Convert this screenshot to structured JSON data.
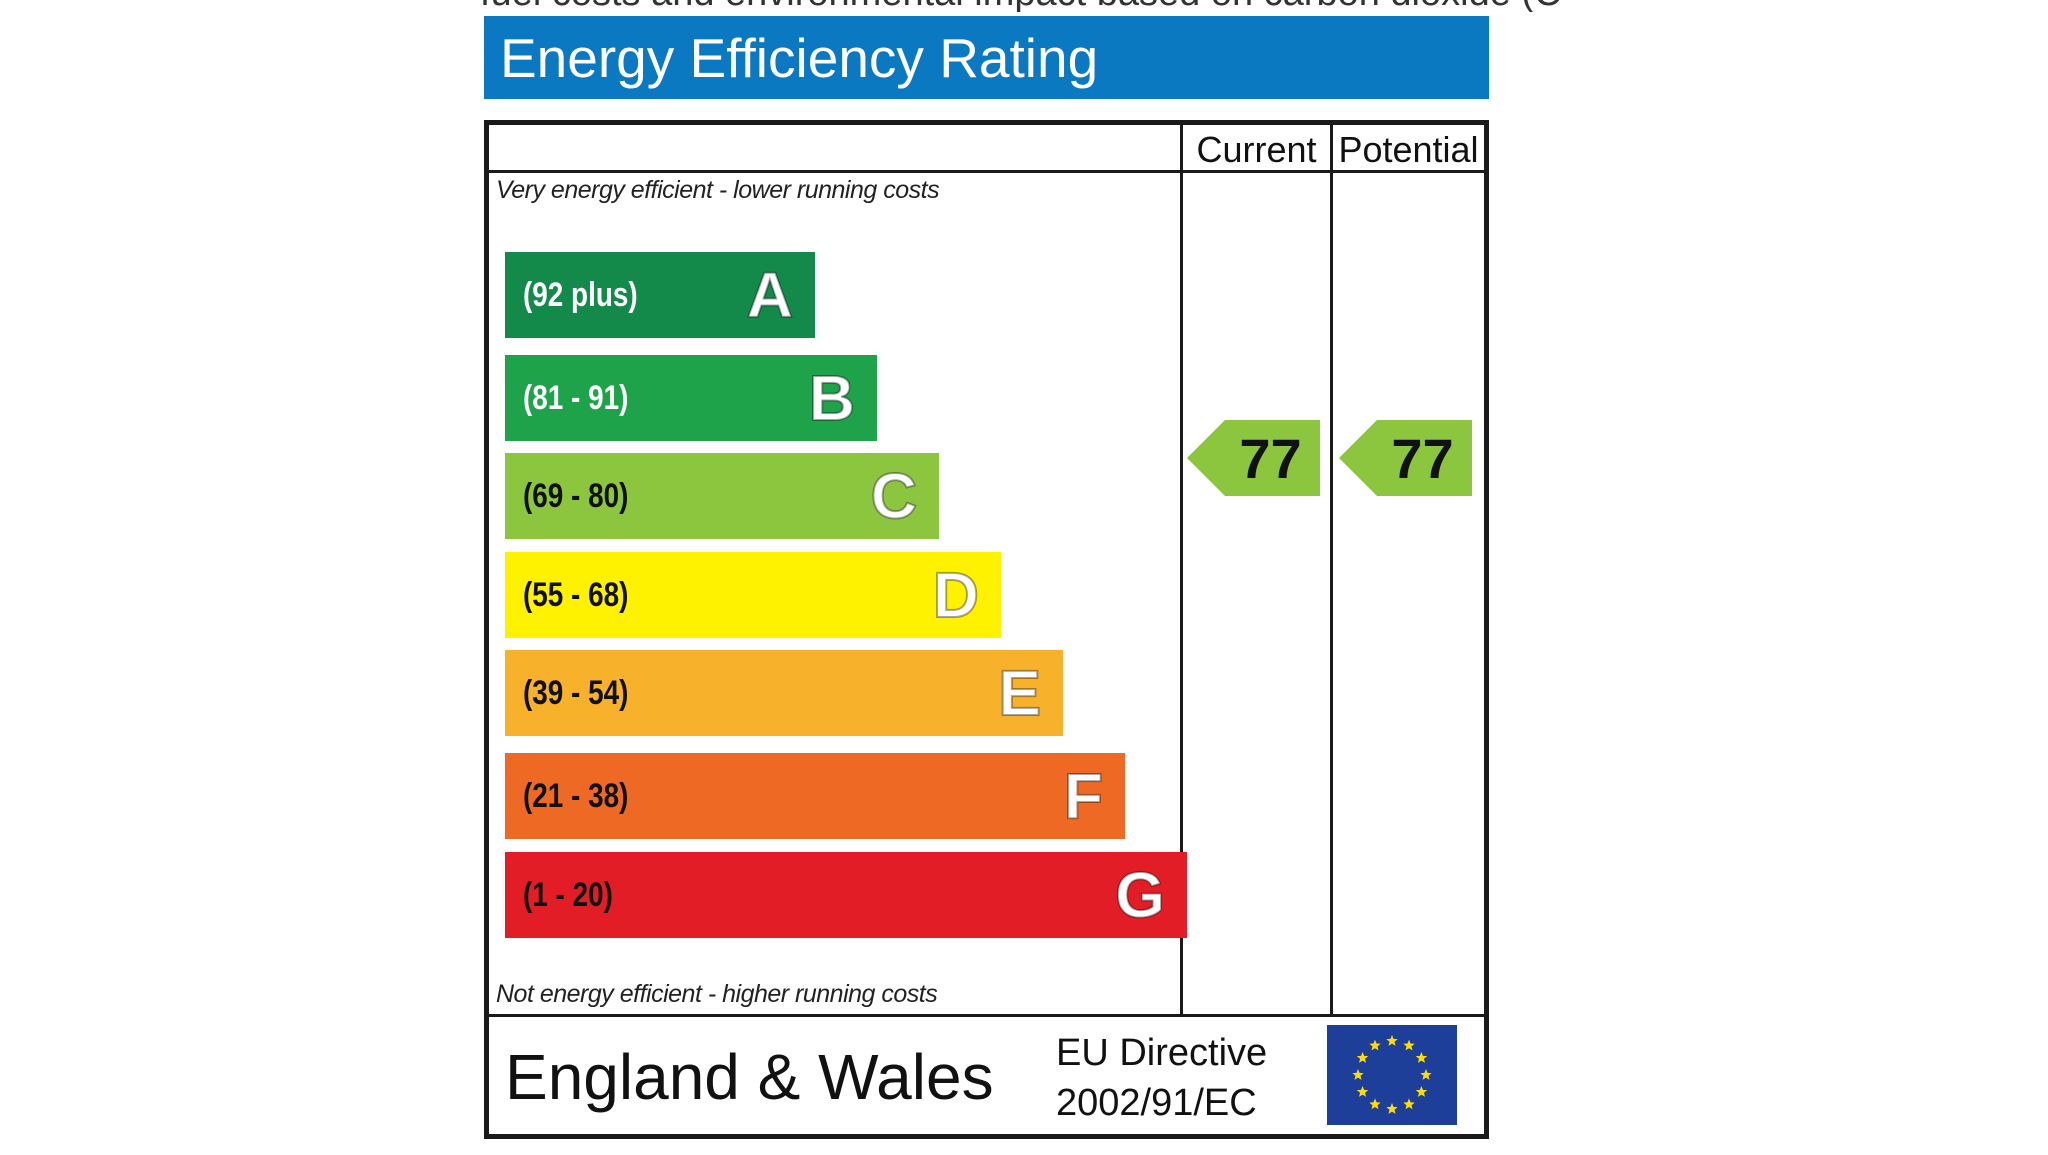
{
  "page": {
    "cut_off_text": "fuel costs and environmental impact based on carbon dioxide (C"
  },
  "chart_data": {
    "type": "bar",
    "title": "Energy Efficiency Rating",
    "columns": [
      "Current",
      "Potential"
    ],
    "top_note": "Very energy efficient - lower running costs",
    "bottom_note": "Not energy efficient - higher running costs",
    "bands": [
      {
        "letter": "A",
        "range": "(92 plus)",
        "color": "#138a4a",
        "text_color": "#ffffff"
      },
      {
        "letter": "B",
        "range": "(81 - 91)",
        "color": "#1ea34b",
        "text_color": "#ffffff"
      },
      {
        "letter": "C",
        "range": "(69 - 80)",
        "color": "#8cc63f",
        "text_color": "#111111"
      },
      {
        "letter": "D",
        "range": "(55 - 68)",
        "color": "#fff200",
        "text_color": "#111111"
      },
      {
        "letter": "E",
        "range": "(39 - 54)",
        "color": "#f7b12b",
        "text_color": "#111111"
      },
      {
        "letter": "F",
        "range": "(21 - 38)",
        "color": "#ee6a24",
        "text_color": "#111111"
      },
      {
        "letter": "G",
        "range": "(1 - 20)",
        "color": "#e31d25",
        "text_color": "#111111"
      }
    ],
    "current": {
      "value": "77",
      "band": "C",
      "color": "#8cc63f"
    },
    "potential": {
      "value": "77",
      "band": "C",
      "color": "#8cc63f"
    }
  },
  "footer": {
    "region": "England & Wales",
    "directive_line1": "EU Directive",
    "directive_line2": "2002/91/EC",
    "flag_icon": "eu-flag-icon"
  }
}
